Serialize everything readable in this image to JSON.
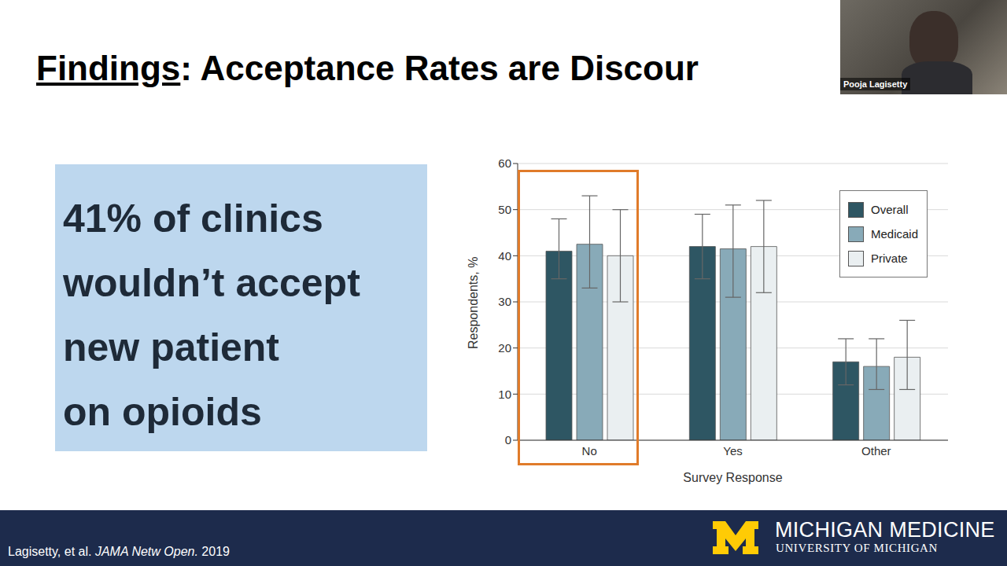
{
  "slide": {
    "title": {
      "emphasis": "Findings",
      "rest": ": Acceptance Rates are Discour"
    },
    "callout": [
      "41% of clinics",
      "wouldn’t accept",
      "new patient",
      "on opioids"
    ],
    "citation": {
      "authors": "Lagisetty, et al.",
      "journal": "JAMA Netw Open.",
      "year": "2019"
    },
    "logo": [
      "MICHIGAN MEDICINE",
      "UNIVERSITY OF MICHIGAN"
    ],
    "speaker": "Pooja Lagisetty"
  },
  "chart_data": {
    "type": "bar",
    "categories": [
      "No",
      "Yes",
      "Other"
    ],
    "series": [
      {
        "name": "Overall",
        "color": "#2e5663",
        "values": [
          41,
          42,
          17
        ],
        "ci_low": [
          35,
          35,
          12
        ],
        "ci_high": [
          48,
          49,
          22
        ]
      },
      {
        "name": "Medicaid",
        "color": "#88aab8",
        "values": [
          42.5,
          41.5,
          16
        ],
        "ci_low": [
          33,
          31,
          11
        ],
        "ci_high": [
          53,
          51,
          22
        ]
      },
      {
        "name": "Private",
        "color": "#eaeff1",
        "values": [
          40,
          42,
          18
        ],
        "ci_low": [
          30,
          32,
          11
        ],
        "ci_high": [
          50,
          52,
          26
        ]
      }
    ],
    "x_label": "Survey Response",
    "y_label": "Respondents, %",
    "ylim": [
      0,
      60
    ],
    "yticks": [
      0,
      10,
      20,
      30,
      40,
      50,
      60
    ],
    "grid": true,
    "legend": "upper right"
  }
}
